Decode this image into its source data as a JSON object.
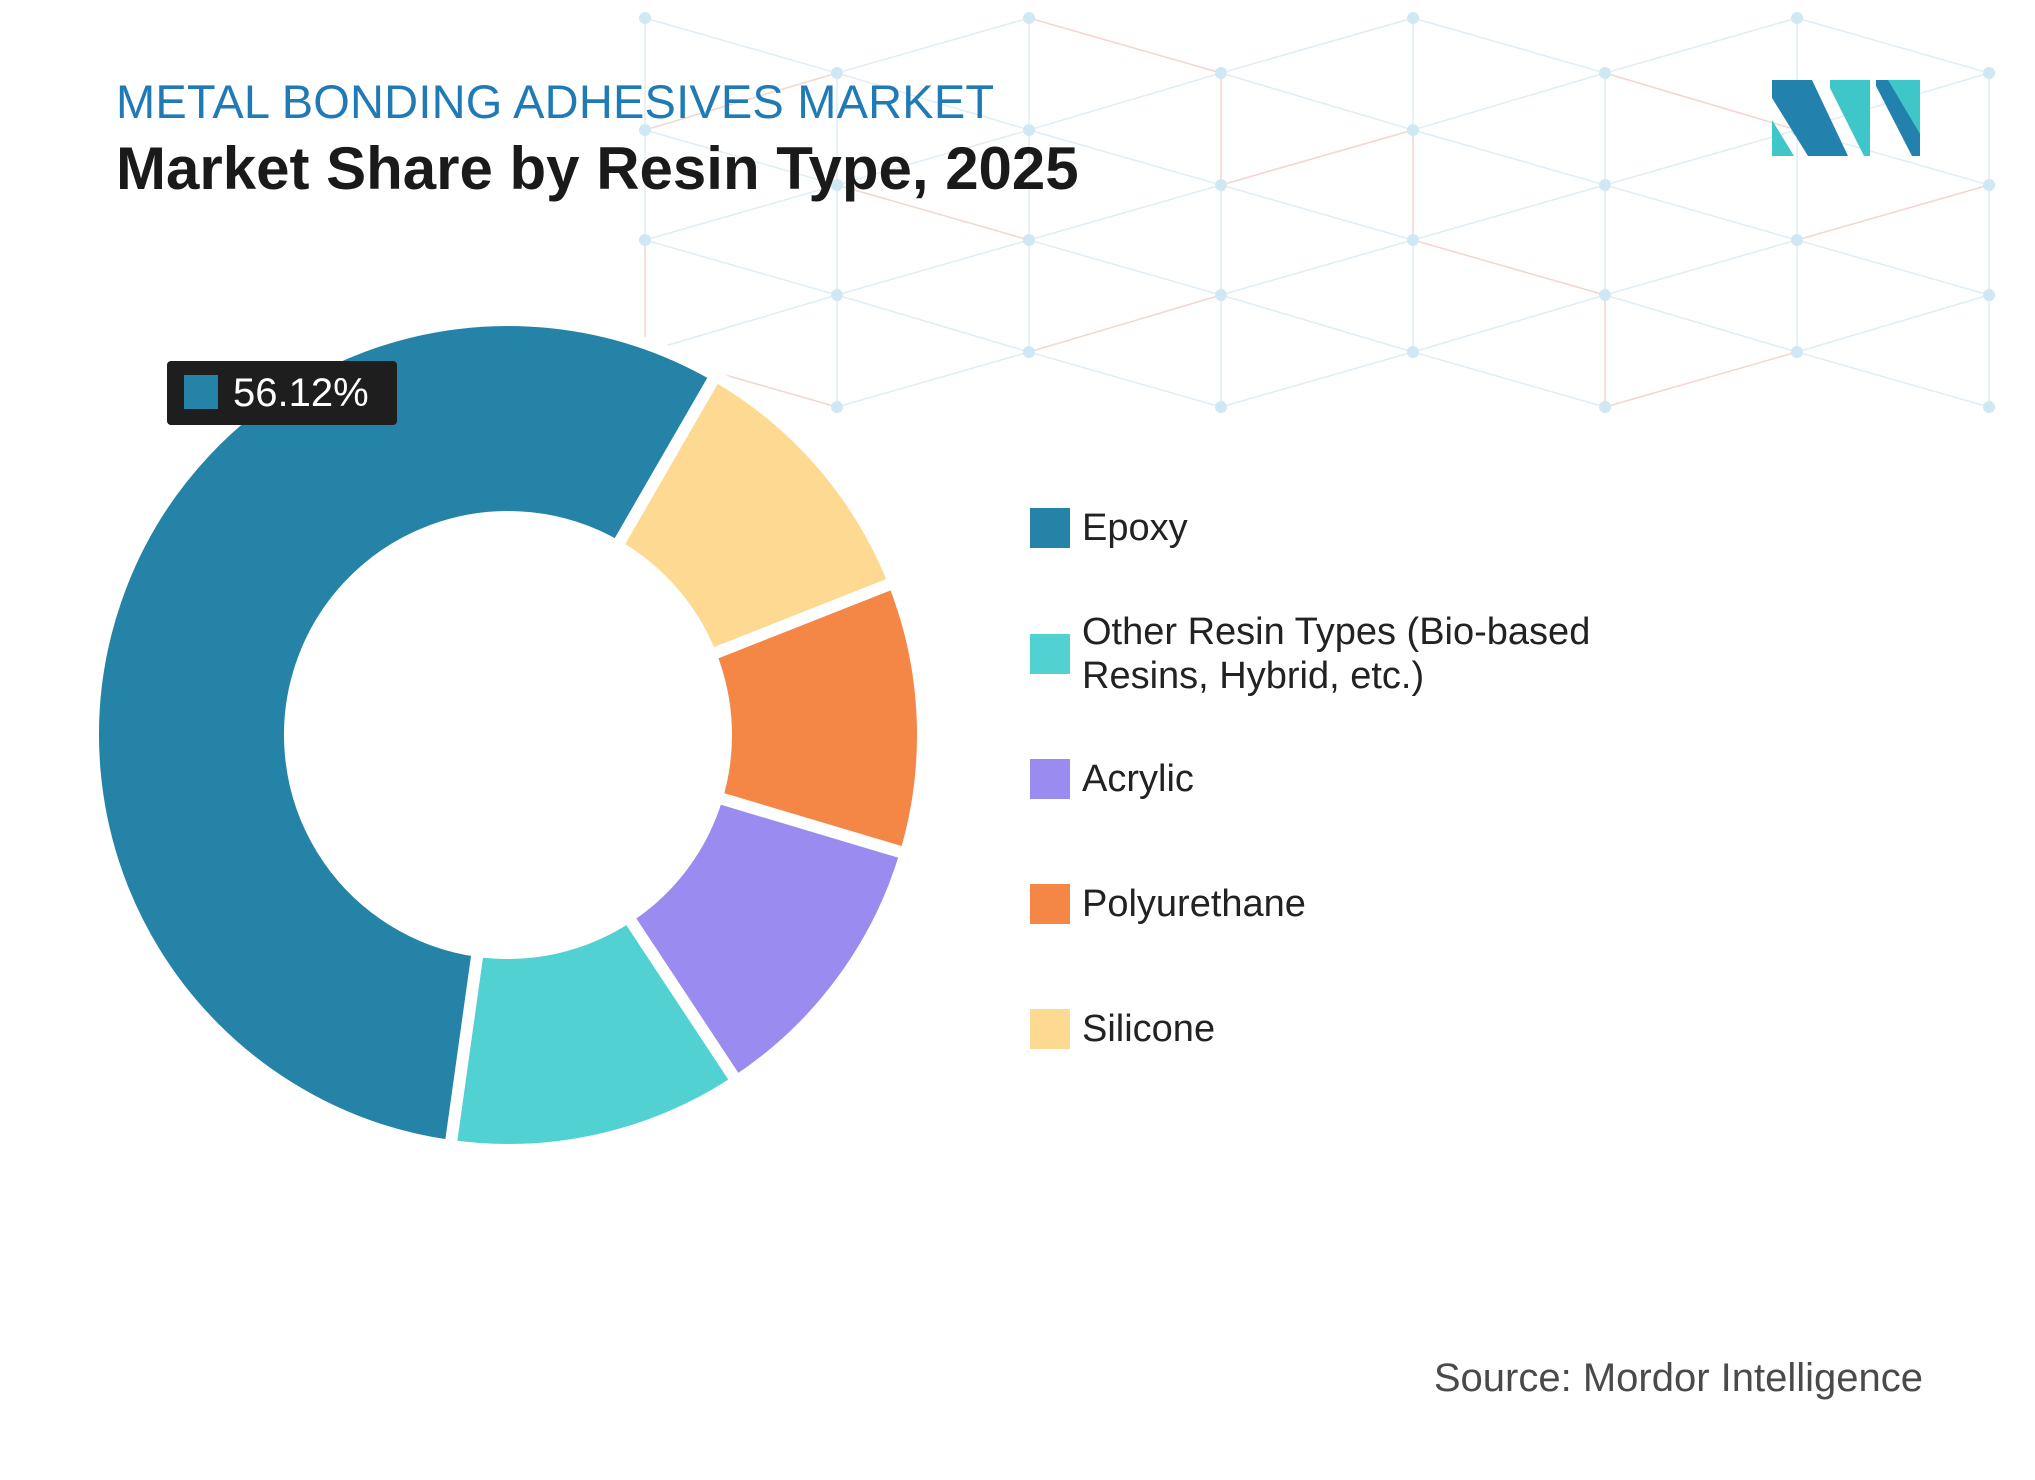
{
  "header": {
    "kicker": "METAL BONDING ADHESIVES MARKET",
    "title": "Market Share by Resin Type, 2025"
  },
  "logo": {
    "name": "mordor-intelligence-logo-icon",
    "colors": [
      "#2381ad",
      "#3ec6c9"
    ]
  },
  "chart_data": {
    "type": "donut",
    "title": "Market Share by Resin Type, 2025",
    "unit": "%",
    "series": [
      {
        "name": "Epoxy",
        "value": 56.12,
        "color": "#2683a8"
      },
      {
        "name": "Other Resin Types (Bio-based Resins, Hybrid, etc.)",
        "value": 11.5,
        "color": "#52d1d3"
      },
      {
        "name": "Acrylic",
        "value": 11.1,
        "color": "#9a8bf0"
      },
      {
        "name": "Polyurethane",
        "value": 10.6,
        "color": "#f48646"
      },
      {
        "name": "Silicone",
        "value": 10.68,
        "color": "#fed992"
      }
    ],
    "callout": {
      "series": "Epoxy",
      "label": "56.12%"
    },
    "legend_position": "right"
  },
  "source": "Source: Mordor Intelligence"
}
